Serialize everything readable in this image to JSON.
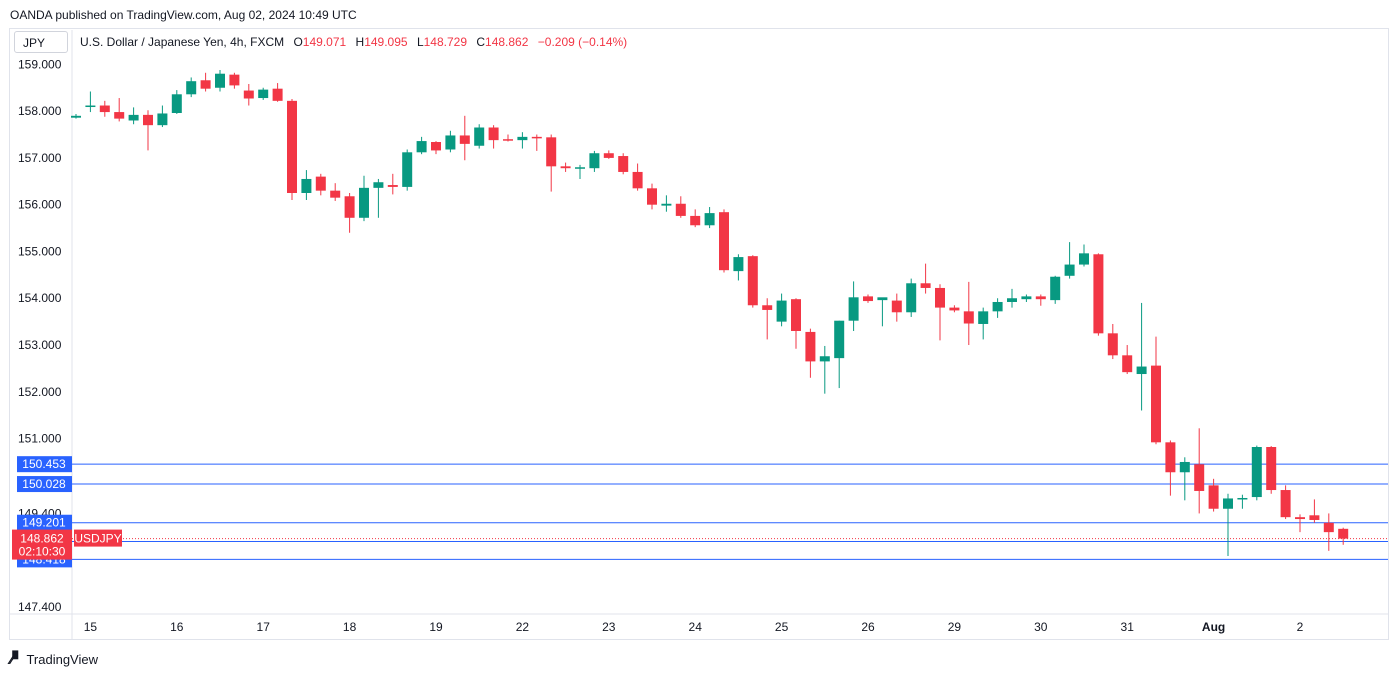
{
  "header": {
    "published": "OANDA published on TradingView.com, Aug 02, 2024 10:49 UTC"
  },
  "symbol_box": "JPY",
  "legend": {
    "title": "U.S. Dollar / Japanese Yen, 4h, FXCM",
    "o_label": "O",
    "o_value": "149.071",
    "h_label": "H",
    "h_value": "149.095",
    "l_label": "L",
    "l_value": "148.729",
    "c_label": "C",
    "c_value": "148.862",
    "change": "−0.209 (−0.14%)"
  },
  "footer": {
    "brand": "TradingView",
    "logo_icon": "tradingview-logo-icon"
  },
  "colors": {
    "up": "#089981",
    "down": "#f23645",
    "hline": "#2962ff",
    "price_label": "#f23645"
  },
  "chart_data": {
    "type": "candlestick",
    "instrument": "USDJPY",
    "timeframe": "4h",
    "ylim": [
      147.25,
      159.2
    ],
    "y_ticks": [
      "159.000",
      "158.000",
      "157.000",
      "156.000",
      "155.000",
      "154.000",
      "153.000",
      "152.000",
      "151.000",
      "149.400",
      "147.400"
    ],
    "y_tick_values": [
      159,
      158,
      157,
      156,
      155,
      154,
      153,
      152,
      151,
      149.4,
      147.4
    ],
    "x_labels": [
      "15",
      "16",
      "17",
      "18",
      "19",
      "22",
      "23",
      "24",
      "25",
      "26",
      "29",
      "30",
      "31",
      "Aug",
      "2"
    ],
    "x_label_bars": [
      1,
      7,
      13,
      19,
      25,
      31,
      37,
      43,
      49,
      55,
      61,
      67,
      73,
      79,
      85
    ],
    "horizontal_levels": [
      "150.453",
      "150.028",
      "149.201",
      "148.799",
      "148.418"
    ],
    "horizontal_level_values": [
      150.453,
      150.028,
      149.201,
      148.799,
      148.418
    ],
    "current_price": {
      "value": "148.862",
      "label": "USDJPY",
      "countdown": "02:10:30"
    },
    "candles": [
      {
        "o": 157.86,
        "h": 157.94,
        "l": 157.84,
        "c": 157.9
      },
      {
        "o": 158.1,
        "h": 158.42,
        "l": 157.98,
        "c": 158.12
      },
      {
        "o": 158.12,
        "h": 158.22,
        "l": 157.88,
        "c": 157.98
      },
      {
        "o": 157.98,
        "h": 158.28,
        "l": 157.78,
        "c": 157.84
      },
      {
        "o": 157.8,
        "h": 158.08,
        "l": 157.72,
        "c": 157.92
      },
      {
        "o": 157.92,
        "h": 158.02,
        "l": 157.16,
        "c": 157.7
      },
      {
        "o": 157.7,
        "h": 158.12,
        "l": 157.66,
        "c": 157.95
      },
      {
        "o": 157.96,
        "h": 158.45,
        "l": 157.94,
        "c": 158.36
      },
      {
        "o": 158.36,
        "h": 158.72,
        "l": 158.3,
        "c": 158.64
      },
      {
        "o": 158.66,
        "h": 158.82,
        "l": 158.42,
        "c": 158.48
      },
      {
        "o": 158.5,
        "h": 158.88,
        "l": 158.42,
        "c": 158.8
      },
      {
        "o": 158.78,
        "h": 158.82,
        "l": 158.48,
        "c": 158.55
      },
      {
        "o": 158.44,
        "h": 158.58,
        "l": 158.12,
        "c": 158.27
      },
      {
        "o": 158.28,
        "h": 158.5,
        "l": 158.24,
        "c": 158.46
      },
      {
        "o": 158.48,
        "h": 158.6,
        "l": 158.2,
        "c": 158.22
      },
      {
        "o": 158.22,
        "h": 158.26,
        "l": 156.1,
        "c": 156.25
      },
      {
        "o": 156.25,
        "h": 156.74,
        "l": 156.1,
        "c": 156.55
      },
      {
        "o": 156.6,
        "h": 156.66,
        "l": 156.2,
        "c": 156.3
      },
      {
        "o": 156.3,
        "h": 156.46,
        "l": 156.08,
        "c": 156.15
      },
      {
        "o": 156.18,
        "h": 156.25,
        "l": 155.4,
        "c": 155.72
      },
      {
        "o": 155.72,
        "h": 156.62,
        "l": 155.65,
        "c": 156.36
      },
      {
        "o": 156.36,
        "h": 156.55,
        "l": 155.72,
        "c": 156.48
      },
      {
        "o": 156.42,
        "h": 156.66,
        "l": 156.22,
        "c": 156.38
      },
      {
        "o": 156.38,
        "h": 157.18,
        "l": 156.3,
        "c": 157.12
      },
      {
        "o": 157.12,
        "h": 157.45,
        "l": 157.08,
        "c": 157.36
      },
      {
        "o": 157.34,
        "h": 157.36,
        "l": 157.08,
        "c": 157.16
      },
      {
        "o": 157.18,
        "h": 157.58,
        "l": 157.12,
        "c": 157.48
      },
      {
        "o": 157.48,
        "h": 157.9,
        "l": 156.95,
        "c": 157.3
      },
      {
        "o": 157.26,
        "h": 157.72,
        "l": 157.2,
        "c": 157.65
      },
      {
        "o": 157.65,
        "h": 157.7,
        "l": 157.2,
        "c": 157.38
      },
      {
        "o": 157.4,
        "h": 157.5,
        "l": 157.35,
        "c": 157.38
      },
      {
        "o": 157.38,
        "h": 157.55,
        "l": 157.2,
        "c": 157.45
      },
      {
        "o": 157.45,
        "h": 157.5,
        "l": 157.15,
        "c": 157.42
      },
      {
        "o": 157.44,
        "h": 157.5,
        "l": 156.28,
        "c": 156.82
      },
      {
        "o": 156.82,
        "h": 156.9,
        "l": 156.7,
        "c": 156.78
      },
      {
        "o": 156.78,
        "h": 156.85,
        "l": 156.55,
        "c": 156.8
      },
      {
        "o": 156.78,
        "h": 157.15,
        "l": 156.7,
        "c": 157.1
      },
      {
        "o": 157.1,
        "h": 157.16,
        "l": 156.98,
        "c": 157.0
      },
      {
        "o": 157.04,
        "h": 157.1,
        "l": 156.65,
        "c": 156.7
      },
      {
        "o": 156.7,
        "h": 156.88,
        "l": 156.3,
        "c": 156.35
      },
      {
        "o": 156.35,
        "h": 156.45,
        "l": 155.9,
        "c": 156.0
      },
      {
        "o": 155.98,
        "h": 156.2,
        "l": 155.85,
        "c": 156.02
      },
      {
        "o": 156.02,
        "h": 156.18,
        "l": 155.72,
        "c": 155.76
      },
      {
        "o": 155.76,
        "h": 155.9,
        "l": 155.52,
        "c": 155.56
      },
      {
        "o": 155.56,
        "h": 155.95,
        "l": 155.5,
        "c": 155.82
      },
      {
        "o": 155.84,
        "h": 155.9,
        "l": 154.55,
        "c": 154.6
      },
      {
        "o": 154.58,
        "h": 154.94,
        "l": 154.38,
        "c": 154.88
      },
      {
        "o": 154.9,
        "h": 154.92,
        "l": 153.8,
        "c": 153.85
      },
      {
        "o": 153.85,
        "h": 154.0,
        "l": 153.12,
        "c": 153.75
      },
      {
        "o": 153.5,
        "h": 154.1,
        "l": 153.4,
        "c": 153.95
      },
      {
        "o": 153.98,
        "h": 154.0,
        "l": 152.92,
        "c": 153.3
      },
      {
        "o": 153.28,
        "h": 153.35,
        "l": 152.3,
        "c": 152.65
      },
      {
        "o": 152.65,
        "h": 152.98,
        "l": 151.96,
        "c": 152.76
      },
      {
        "o": 152.72,
        "h": 153.52,
        "l": 152.08,
        "c": 153.52
      },
      {
        "o": 153.52,
        "h": 154.36,
        "l": 153.3,
        "c": 154.02
      },
      {
        "o": 154.04,
        "h": 154.08,
        "l": 153.9,
        "c": 153.94
      },
      {
        "o": 153.96,
        "h": 154.0,
        "l": 153.4,
        "c": 154.02
      },
      {
        "o": 153.95,
        "h": 154.1,
        "l": 153.5,
        "c": 153.7
      },
      {
        "o": 153.7,
        "h": 154.42,
        "l": 153.6,
        "c": 154.32
      },
      {
        "o": 154.32,
        "h": 154.74,
        "l": 154.1,
        "c": 154.22
      },
      {
        "o": 154.22,
        "h": 154.3,
        "l": 153.1,
        "c": 153.8
      },
      {
        "o": 153.8,
        "h": 153.85,
        "l": 153.7,
        "c": 153.74
      },
      {
        "o": 153.72,
        "h": 154.35,
        "l": 153.0,
        "c": 153.46
      },
      {
        "o": 153.45,
        "h": 153.8,
        "l": 153.12,
        "c": 153.72
      },
      {
        "o": 153.72,
        "h": 154.0,
        "l": 153.58,
        "c": 153.92
      },
      {
        "o": 153.92,
        "h": 154.2,
        "l": 153.8,
        "c": 154.0
      },
      {
        "o": 153.98,
        "h": 154.08,
        "l": 153.92,
        "c": 154.04
      },
      {
        "o": 154.04,
        "h": 154.08,
        "l": 153.84,
        "c": 153.98
      },
      {
        "o": 153.96,
        "h": 154.48,
        "l": 153.88,
        "c": 154.46
      },
      {
        "o": 154.48,
        "h": 155.2,
        "l": 154.42,
        "c": 154.72
      },
      {
        "o": 154.72,
        "h": 155.15,
        "l": 154.68,
        "c": 154.96
      },
      {
        "o": 154.94,
        "h": 154.96,
        "l": 153.2,
        "c": 153.25
      },
      {
        "o": 153.25,
        "h": 153.45,
        "l": 152.7,
        "c": 152.78
      },
      {
        "o": 152.78,
        "h": 153.0,
        "l": 152.38,
        "c": 152.42
      },
      {
        "o": 152.38,
        "h": 153.9,
        "l": 151.6,
        "c": 152.54
      },
      {
        "o": 152.56,
        "h": 153.18,
        "l": 150.88,
        "c": 150.92
      },
      {
        "o": 150.92,
        "h": 150.96,
        "l": 149.78,
        "c": 150.28
      },
      {
        "o": 150.28,
        "h": 150.6,
        "l": 149.68,
        "c": 150.5
      },
      {
        "o": 150.45,
        "h": 151.22,
        "l": 149.4,
        "c": 149.88
      },
      {
        "o": 150.0,
        "h": 150.14,
        "l": 149.44,
        "c": 149.5
      },
      {
        "o": 149.5,
        "h": 149.82,
        "l": 148.49,
        "c": 149.72
      },
      {
        "o": 149.72,
        "h": 149.8,
        "l": 149.5,
        "c": 149.73
      },
      {
        "o": 149.75,
        "h": 150.85,
        "l": 149.68,
        "c": 150.82
      },
      {
        "o": 150.82,
        "h": 150.84,
        "l": 149.82,
        "c": 149.9
      },
      {
        "o": 149.9,
        "h": 150.0,
        "l": 149.28,
        "c": 149.32
      },
      {
        "o": 149.32,
        "h": 149.38,
        "l": 149.0,
        "c": 149.28
      },
      {
        "o": 149.36,
        "h": 149.7,
        "l": 149.2,
        "c": 149.26
      },
      {
        "o": 149.2,
        "h": 149.4,
        "l": 148.6,
        "c": 149.0
      },
      {
        "o": 149.071,
        "h": 149.095,
        "l": 148.729,
        "c": 148.862
      }
    ]
  }
}
